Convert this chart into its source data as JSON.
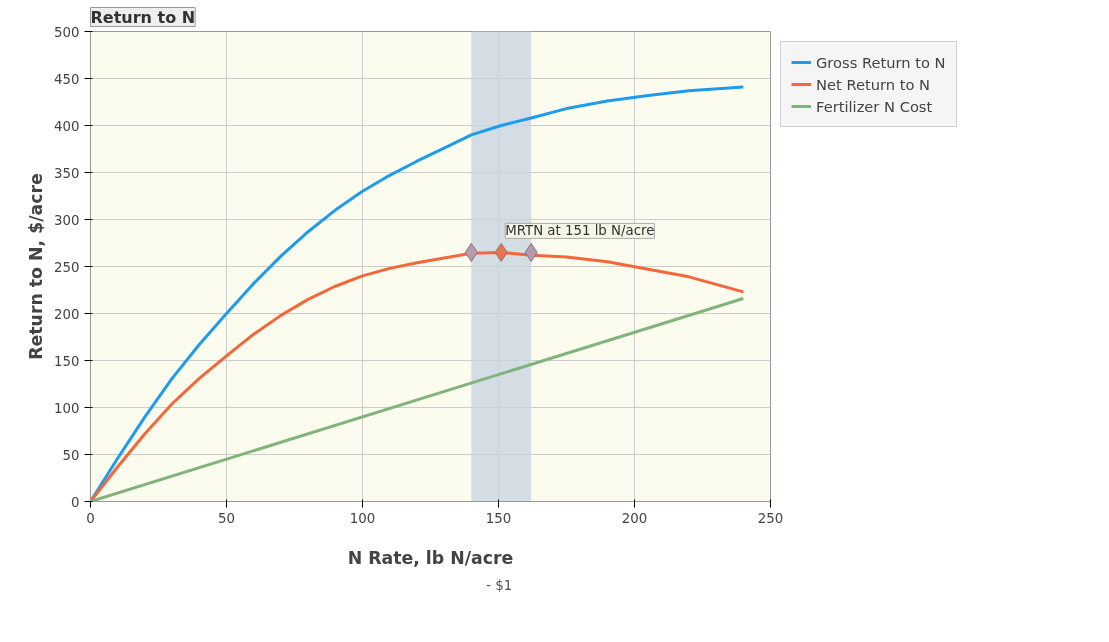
{
  "chart_data": {
    "type": "line",
    "title": "Return to N",
    "xlabel": "N Rate, lb N/acre",
    "ylabel": "Return to N, $/acre",
    "x": [
      0,
      10,
      20,
      30,
      40,
      50,
      60,
      70,
      80,
      90,
      100,
      110,
      120,
      130,
      140,
      151,
      162,
      175,
      190,
      205,
      220,
      240
    ],
    "series": [
      {
        "name": "Gross Return to N",
        "color": "#1e9bf0",
        "values": [
          0,
          46,
          90,
          131,
          167,
          200,
          232,
          261,
          287,
          310,
          330,
          347,
          362,
          376,
          390,
          400,
          408,
          418,
          426,
          432,
          437,
          441
        ]
      },
      {
        "name": "Net Return to N",
        "color": "#f5673a",
        "values": [
          0,
          37,
          72,
          104,
          131,
          155,
          178,
          198,
          215,
          229,
          240,
          248,
          254,
          259,
          264,
          265,
          262,
          260,
          255,
          247,
          239,
          223
        ]
      },
      {
        "name": "Fertilizer N Cost",
        "color": "#80b47c",
        "x": [
          0,
          240
        ],
        "values": [
          0,
          216
        ]
      },
      {
        "type": "scatter",
        "marker": "diamond",
        "x": [
          140,
          151,
          162
        ],
        "values": [
          265,
          265,
          265
        ],
        "colors": [
          "#b89aa8",
          "#e8744e",
          "#b89aa8"
        ]
      }
    ],
    "bands": [
      {
        "axis": "x",
        "from": 140,
        "to": 162,
        "color": "#c8d4e0"
      }
    ],
    "annotations": [
      {
        "text": "MRTN at 151 lb N/acre",
        "x": 151,
        "y": 265
      },
      "- $1"
    ],
    "xlim": [
      0,
      250
    ],
    "ylim": [
      0,
      500
    ],
    "xticks": [
      0,
      50,
      100,
      150,
      200,
      250
    ],
    "yticks": [
      0,
      50,
      100,
      150,
      200,
      250,
      300,
      350,
      400,
      450,
      500
    ],
    "grid": true,
    "legend": "right",
    "marker": "none",
    "line_style": "solid"
  }
}
